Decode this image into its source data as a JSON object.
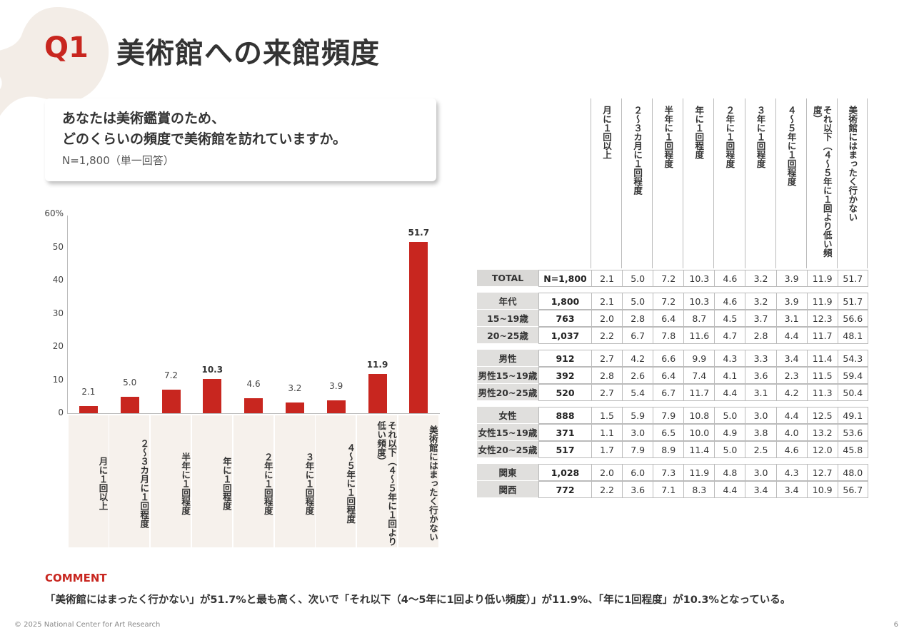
{
  "header": {
    "q_label": "Q1",
    "title": "美術館への来館頻度"
  },
  "question": {
    "line1": "あなたは美術鑑賞のため、",
    "line2": "どのくらいの頻度で美術館を訪れていますか。",
    "n": "N=1,800（単一回答）"
  },
  "chart_data": {
    "type": "bar",
    "categories": [
      "月に1回以上",
      "2～3カ月に1回程度",
      "半年に1回程度",
      "年に1回程度",
      "2年に1回程度",
      "3年に1回程度",
      "4～5年に1回程度",
      "それ以下（4～5年に1回より低い頻度）",
      "美術館にはまったく行かない"
    ],
    "category_labels": [
      "月に１回以上",
      "２～３カ月に１回程度",
      "半年に１回程度",
      "年に１回程度",
      "２年に１回程度",
      "３年に１回程度",
      "４～５年に１回程度",
      "それ以下（４～５年に１回より低い頻度）",
      "美術館にはまったく行かない"
    ],
    "values": [
      2.1,
      5.0,
      7.2,
      10.3,
      4.6,
      3.2,
      3.9,
      11.9,
      51.7
    ],
    "value_labels": [
      "2.1",
      "5.0",
      "7.2",
      "10.3",
      "4.6",
      "3.2",
      "3.9",
      "11.9",
      "51.7"
    ],
    "highlight": [
      false,
      false,
      false,
      true,
      false,
      false,
      false,
      true,
      true
    ],
    "ylim": [
      0,
      60
    ],
    "yticks": [
      "60%",
      "50",
      "40",
      "30",
      "20",
      "10",
      "0"
    ],
    "bar_color": "#c8261f",
    "title": "",
    "xlabel": "",
    "ylabel": ""
  },
  "table": {
    "headers": [
      "月に１回以上",
      "２～３カ月に１回程度",
      "半年に１回程度",
      "年に１回程度",
      "２年に１回程度",
      "３年に１回程度",
      "４～５年に１回程度",
      "それ以下（４～５年に１回より低い頻度）",
      "美術館にはまったく行かない"
    ],
    "rows": [
      {
        "label": "TOTAL",
        "n": "N=1,800",
        "values": [
          "2.1",
          "5.0",
          "7.2",
          "10.3",
          "4.6",
          "3.2",
          "3.9",
          "11.9",
          "51.7"
        ]
      },
      {
        "label": "年代",
        "n": "1,800",
        "values": [
          "2.1",
          "5.0",
          "7.2",
          "10.3",
          "4.6",
          "3.2",
          "3.9",
          "11.9",
          "51.7"
        ]
      },
      {
        "label": "15~19歳",
        "n": "763",
        "values": [
          "2.0",
          "2.8",
          "6.4",
          "8.7",
          "4.5",
          "3.7",
          "3.1",
          "12.3",
          "56.6"
        ]
      },
      {
        "label": "20~25歳",
        "n": "1,037",
        "values": [
          "2.2",
          "6.7",
          "7.8",
          "11.6",
          "4.7",
          "2.8",
          "4.4",
          "11.7",
          "48.1"
        ]
      },
      {
        "label": "男性",
        "n": "912",
        "values": [
          "2.7",
          "4.2",
          "6.6",
          "9.9",
          "4.3",
          "3.3",
          "3.4",
          "11.4",
          "54.3"
        ]
      },
      {
        "label": "男性15~19歳",
        "n": "392",
        "values": [
          "2.8",
          "2.6",
          "6.4",
          "7.4",
          "4.1",
          "3.6",
          "2.3",
          "11.5",
          "59.4"
        ]
      },
      {
        "label": "男性20~25歳",
        "n": "520",
        "values": [
          "2.7",
          "5.4",
          "6.7",
          "11.7",
          "4.4",
          "3.1",
          "4.2",
          "11.3",
          "50.4"
        ]
      },
      {
        "label": "女性",
        "n": "888",
        "values": [
          "1.5",
          "5.9",
          "7.9",
          "10.8",
          "5.0",
          "3.0",
          "4.4",
          "12.5",
          "49.1"
        ]
      },
      {
        "label": "女性15~19歳",
        "n": "371",
        "values": [
          "1.1",
          "3.0",
          "6.5",
          "10.0",
          "4.9",
          "3.8",
          "4.0",
          "13.2",
          "53.6"
        ]
      },
      {
        "label": "女性20~25歳",
        "n": "517",
        "values": [
          "1.7",
          "7.9",
          "8.9",
          "11.4",
          "5.0",
          "2.5",
          "4.6",
          "12.0",
          "45.8"
        ]
      },
      {
        "label": "関東",
        "n": "1,028",
        "values": [
          "2.0",
          "6.0",
          "7.3",
          "11.9",
          "4.8",
          "3.0",
          "4.3",
          "12.7",
          "48.0"
        ]
      },
      {
        "label": "関西",
        "n": "772",
        "values": [
          "2.2",
          "3.6",
          "7.1",
          "8.3",
          "4.4",
          "3.4",
          "3.4",
          "10.9",
          "56.7"
        ]
      }
    ]
  },
  "comment": {
    "title": "COMMENT",
    "text": "「美術館にはまったく行かない」が51.7%と最も高く、次いで「それ以下（4～5年に1回より低い頻度）」が11.9%、「年に1回程度」が10.3%となっている。"
  },
  "footer": {
    "copyright": "© 2025 National Center for Art Research",
    "page": "6"
  },
  "colors": {
    "accent": "#c8261f",
    "label_bg": "#e0dfdd",
    "cat_bg": "#f6f1ec"
  }
}
